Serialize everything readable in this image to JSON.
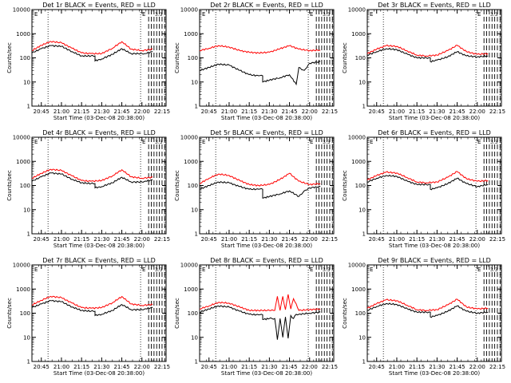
{
  "figure": {
    "time_ticks": [
      "20:45",
      "21:00",
      "21:15",
      "21:30",
      "21:45",
      "22:00",
      "22:15"
    ],
    "y_ticks": [
      "1",
      "10",
      "100",
      "1000",
      "10000"
    ],
    "xlabel": "Start Time (03-Dec-08 20:38:00)",
    "ylabel": "Counts/sec",
    "corner_marks": [
      "E",
      "E",
      "3.3"
    ]
  },
  "colors": {
    "events": "#000000",
    "lld": "#ff0000"
  },
  "chart_data": [
    {
      "type": "line",
      "title": "Det 1r BLACK = Events, RED = LLD",
      "y_scale": "log",
      "ylim": [
        1,
        10000
      ],
      "xlim": [
        "20:38",
        "22:18"
      ],
      "grid": false,
      "vlines_dotted": [
        "20:50",
        "21:59"
      ],
      "vlines_dashed": [
        "22:05",
        "22:07",
        "22:09",
        "22:11",
        "22:13",
        "22:15",
        "22:17"
      ],
      "series": [
        {
          "name": "Events",
          "color": "#000000",
          "x": [
            "20:38",
            "20:45",
            "20:52",
            "21:00",
            "21:08",
            "21:15",
            "21:22",
            "21:25",
            "21:25",
            "21:30",
            "21:38",
            "21:45",
            "21:52",
            "22:00",
            "22:02",
            "22:08"
          ],
          "y": [
            160,
            240,
            320,
            300,
            180,
            120,
            120,
            120,
            75,
            90,
            140,
            240,
            150,
            150,
            150,
            180
          ]
        },
        {
          "name": "LLD",
          "color": "#ff0000",
          "x": [
            "20:38",
            "20:45",
            "20:52",
            "21:00",
            "21:08",
            "21:15",
            "21:22",
            "21:30",
            "21:38",
            "21:45",
            "21:52",
            "22:00",
            "22:08"
          ],
          "y": [
            200,
            330,
            480,
            420,
            250,
            160,
            150,
            150,
            250,
            470,
            230,
            200,
            230
          ]
        }
      ]
    },
    {
      "type": "line",
      "title": "Det 2r BLACK = Events, RED = LLD",
      "y_scale": "log",
      "ylim": [
        1,
        10000
      ],
      "xlim": [
        "20:38",
        "22:18"
      ],
      "grid": false,
      "vlines_dotted": [
        "20:50",
        "21:59"
      ],
      "vlines_dashed": [
        "22:05",
        "22:07",
        "22:09",
        "22:11",
        "22:13",
        "22:15",
        "22:17"
      ],
      "series": [
        {
          "name": "Events",
          "color": "#000000",
          "x": [
            "20:38",
            "20:45",
            "20:52",
            "21:00",
            "21:08",
            "21:15",
            "21:22",
            "21:25",
            "21:25",
            "21:30",
            "21:38",
            "21:45",
            "21:50",
            "21:52",
            "21:56",
            "22:00",
            "22:08"
          ],
          "y": [
            30,
            40,
            55,
            50,
            30,
            20,
            18,
            18,
            10,
            12,
            15,
            20,
            8,
            40,
            30,
            60,
            70
          ]
        },
        {
          "name": "LLD",
          "color": "#ff0000",
          "x": [
            "20:38",
            "20:45",
            "20:52",
            "21:00",
            "21:08",
            "21:15",
            "21:22",
            "21:30",
            "21:38",
            "21:45",
            "21:52",
            "22:00",
            "22:08"
          ],
          "y": [
            200,
            250,
            320,
            280,
            200,
            170,
            160,
            170,
            240,
            320,
            230,
            200,
            210
          ]
        }
      ]
    },
    {
      "type": "line",
      "title": "Det 3r BLACK = Events, RED = LLD",
      "y_scale": "log",
      "ylim": [
        1,
        10000
      ],
      "xlim": [
        "20:38",
        "22:18"
      ],
      "grid": false,
      "vlines_dotted": [
        "20:50",
        "21:59"
      ],
      "vlines_dashed": [
        "22:05",
        "22:07",
        "22:09",
        "22:11",
        "22:13",
        "22:15",
        "22:17"
      ],
      "series": [
        {
          "name": "Events",
          "color": "#000000",
          "x": [
            "20:38",
            "20:45",
            "20:52",
            "21:00",
            "21:08",
            "21:15",
            "21:22",
            "21:25",
            "21:25",
            "21:30",
            "21:38",
            "21:45",
            "21:52",
            "22:00",
            "22:08"
          ],
          "y": [
            130,
            180,
            240,
            220,
            140,
            100,
            100,
            100,
            70,
            80,
            110,
            180,
            120,
            110,
            120
          ]
        },
        {
          "name": "LLD",
          "color": "#ff0000",
          "x": [
            "20:38",
            "20:45",
            "20:52",
            "21:00",
            "21:08",
            "21:15",
            "21:22",
            "21:30",
            "21:38",
            "21:45",
            "21:52",
            "22:00",
            "22:08"
          ],
          "y": [
            150,
            230,
            320,
            300,
            190,
            130,
            120,
            130,
            200,
            330,
            180,
            140,
            150
          ]
        }
      ]
    },
    {
      "type": "line",
      "title": "Det 4r BLACK = Events, RED = LLD",
      "y_scale": "log",
      "ylim": [
        1,
        10000
      ],
      "xlim": [
        "20:38",
        "22:18"
      ],
      "grid": false,
      "vlines_dotted": [
        "20:50",
        "21:59"
      ],
      "vlines_dashed": [
        "22:05",
        "22:07",
        "22:09",
        "22:11",
        "22:13",
        "22:15",
        "22:17"
      ],
      "series": [
        {
          "name": "Events",
          "color": "#000000",
          "x": [
            "20:38",
            "20:45",
            "20:52",
            "21:00",
            "21:08",
            "21:15",
            "21:22",
            "21:25",
            "21:25",
            "21:30",
            "21:38",
            "21:45",
            "21:52",
            "22:00",
            "22:02",
            "22:08"
          ],
          "y": [
            150,
            230,
            330,
            300,
            180,
            130,
            120,
            120,
            80,
            90,
            130,
            220,
            140,
            140,
            150,
            170
          ]
        },
        {
          "name": "LLD",
          "color": "#ff0000",
          "x": [
            "20:38",
            "20:45",
            "20:52",
            "21:00",
            "21:08",
            "21:15",
            "21:22",
            "21:30",
            "21:38",
            "21:45",
            "21:52",
            "22:00",
            "22:08"
          ],
          "y": [
            200,
            320,
            470,
            420,
            250,
            160,
            150,
            160,
            250,
            450,
            230,
            200,
            220
          ]
        }
      ]
    },
    {
      "type": "line",
      "title": "Det 5r BLACK = Events, RED = LLD",
      "y_scale": "log",
      "ylim": [
        1,
        10000
      ],
      "xlim": [
        "20:38",
        "22:18"
      ],
      "grid": false,
      "vlines_dotted": [
        "20:50",
        "21:59"
      ],
      "vlines_dashed": [
        "22:05",
        "22:07",
        "22:09",
        "22:11",
        "22:13",
        "22:15",
        "22:17"
      ],
      "series": [
        {
          "name": "Events",
          "color": "#000000",
          "x": [
            "20:38",
            "20:45",
            "20:52",
            "21:00",
            "21:08",
            "21:15",
            "21:22",
            "21:25",
            "21:25",
            "21:30",
            "21:38",
            "21:45",
            "21:52",
            "21:56",
            "22:00",
            "22:08"
          ],
          "y": [
            70,
            100,
            140,
            130,
            90,
            70,
            70,
            70,
            30,
            35,
            45,
            60,
            35,
            60,
            80,
            90
          ]
        },
        {
          "name": "LLD",
          "color": "#ff0000",
          "x": [
            "20:38",
            "20:45",
            "20:52",
            "21:00",
            "21:08",
            "21:15",
            "21:22",
            "21:30",
            "21:38",
            "21:45",
            "21:52",
            "22:00",
            "22:08"
          ],
          "y": [
            120,
            200,
            300,
            260,
            160,
            110,
            100,
            110,
            180,
            320,
            150,
            110,
            120
          ]
        }
      ]
    },
    {
      "type": "line",
      "title": "Det 6r BLACK = Events, RED = LLD",
      "y_scale": "log",
      "ylim": [
        1,
        10000
      ],
      "xlim": [
        "20:38",
        "22:18"
      ],
      "grid": false,
      "vlines_dotted": [
        "20:50",
        "21:59"
      ],
      "vlines_dashed": [
        "22:05",
        "22:07",
        "22:09",
        "22:11",
        "22:13",
        "22:15",
        "22:17"
      ],
      "series": [
        {
          "name": "Events",
          "color": "#000000",
          "x": [
            "20:38",
            "20:45",
            "20:52",
            "21:00",
            "21:08",
            "21:15",
            "21:22",
            "21:25",
            "21:25",
            "21:30",
            "21:38",
            "21:45",
            "21:52",
            "22:00",
            "22:08"
          ],
          "y": [
            140,
            200,
            260,
            240,
            150,
            110,
            110,
            110,
            70,
            80,
            120,
            200,
            120,
            90,
            110
          ]
        },
        {
          "name": "LLD",
          "color": "#ff0000",
          "x": [
            "20:38",
            "20:45",
            "20:52",
            "21:00",
            "21:08",
            "21:15",
            "21:22",
            "21:30",
            "21:38",
            "21:45",
            "21:52",
            "22:00",
            "22:08"
          ],
          "y": [
            170,
            260,
            360,
            330,
            210,
            140,
            130,
            140,
            220,
            380,
            190,
            150,
            160
          ]
        }
      ]
    },
    {
      "type": "line",
      "title": "Det 7r BLACK = Events, RED = LLD",
      "y_scale": "log",
      "ylim": [
        1,
        10000
      ],
      "xlim": [
        "20:38",
        "22:18"
      ],
      "grid": false,
      "vlines_dotted": [
        "20:50",
        "21:59"
      ],
      "vlines_dashed": [
        "22:05",
        "22:07",
        "22:09",
        "22:11",
        "22:13",
        "22:15",
        "22:17"
      ],
      "series": [
        {
          "name": "Events",
          "color": "#000000",
          "x": [
            "20:38",
            "20:45",
            "20:52",
            "21:00",
            "21:08",
            "21:15",
            "21:22",
            "21:25",
            "21:25",
            "21:30",
            "21:38",
            "21:45",
            "21:52",
            "22:00",
            "22:02",
            "22:08"
          ],
          "y": [
            170,
            240,
            330,
            300,
            180,
            130,
            120,
            120,
            80,
            90,
            130,
            230,
            140,
            140,
            150,
            170
          ]
        },
        {
          "name": "LLD",
          "color": "#ff0000",
          "x": [
            "20:38",
            "20:45",
            "20:52",
            "21:00",
            "21:08",
            "21:15",
            "21:22",
            "21:30",
            "21:38",
            "21:45",
            "21:52",
            "22:00",
            "22:08"
          ],
          "y": [
            220,
            340,
            500,
            440,
            260,
            170,
            160,
            170,
            270,
            490,
            240,
            210,
            230
          ]
        }
      ]
    },
    {
      "type": "line",
      "title": "Det 8r BLACK = Events, RED = LLD",
      "y_scale": "log",
      "ylim": [
        1,
        10000
      ],
      "xlim": [
        "20:38",
        "22:18"
      ],
      "grid": false,
      "vlines_dotted": [
        "20:50",
        "21:59"
      ],
      "vlines_dashed": [
        "22:05",
        "22:07",
        "22:09",
        "22:11",
        "22:13",
        "22:15",
        "22:17"
      ],
      "series": [
        {
          "name": "Events",
          "color": "#000000",
          "x": [
            "20:38",
            "20:45",
            "20:52",
            "21:00",
            "21:08",
            "21:15",
            "21:22",
            "21:25",
            "21:25",
            "21:30",
            "21:34",
            "21:36",
            "21:38",
            "21:40",
            "21:42",
            "21:44",
            "21:46",
            "21:48",
            "21:50",
            "21:52",
            "22:00",
            "22:08"
          ],
          "y": [
            110,
            150,
            200,
            180,
            120,
            90,
            85,
            85,
            55,
            60,
            60,
            8,
            60,
            10,
            70,
            9,
            80,
            60,
            90,
            90,
            100,
            110
          ]
        },
        {
          "name": "LLD",
          "color": "#ff0000",
          "x": [
            "20:38",
            "20:45",
            "20:52",
            "21:00",
            "21:08",
            "21:15",
            "21:22",
            "21:30",
            "21:34",
            "21:36",
            "21:38",
            "21:40",
            "21:42",
            "21:44",
            "21:46",
            "21:48",
            "21:52",
            "22:00",
            "22:08"
          ],
          "y": [
            150,
            200,
            280,
            260,
            180,
            130,
            130,
            130,
            130,
            500,
            130,
            500,
            140,
            600,
            150,
            400,
            130,
            140,
            150
          ]
        }
      ]
    },
    {
      "type": "line",
      "title": "Det 9r BLACK = Events, RED = LLD",
      "y_scale": "log",
      "ylim": [
        1,
        10000
      ],
      "xlim": [
        "20:38",
        "22:18"
      ],
      "grid": false,
      "vlines_dotted": [
        "20:50",
        "21:59"
      ],
      "vlines_dashed": [
        "22:05",
        "22:07",
        "22:09",
        "22:11",
        "22:13",
        "22:15",
        "22:17"
      ],
      "series": [
        {
          "name": "Events",
          "color": "#000000",
          "x": [
            "20:38",
            "20:45",
            "20:52",
            "21:00",
            "21:08",
            "21:15",
            "21:22",
            "21:25",
            "21:25",
            "21:30",
            "21:38",
            "21:45",
            "21:52",
            "22:00",
            "22:08"
          ],
          "y": [
            130,
            190,
            250,
            230,
            150,
            110,
            110,
            110,
            70,
            80,
            120,
            200,
            120,
            100,
            110
          ]
        },
        {
          "name": "LLD",
          "color": "#ff0000",
          "x": [
            "20:38",
            "20:45",
            "20:52",
            "21:00",
            "21:08",
            "21:15",
            "21:22",
            "21:30",
            "21:38",
            "21:45",
            "21:52",
            "22:00",
            "22:08"
          ],
          "y": [
            160,
            250,
            360,
            330,
            210,
            140,
            130,
            140,
            220,
            380,
            180,
            150,
            160
          ]
        }
      ]
    }
  ]
}
